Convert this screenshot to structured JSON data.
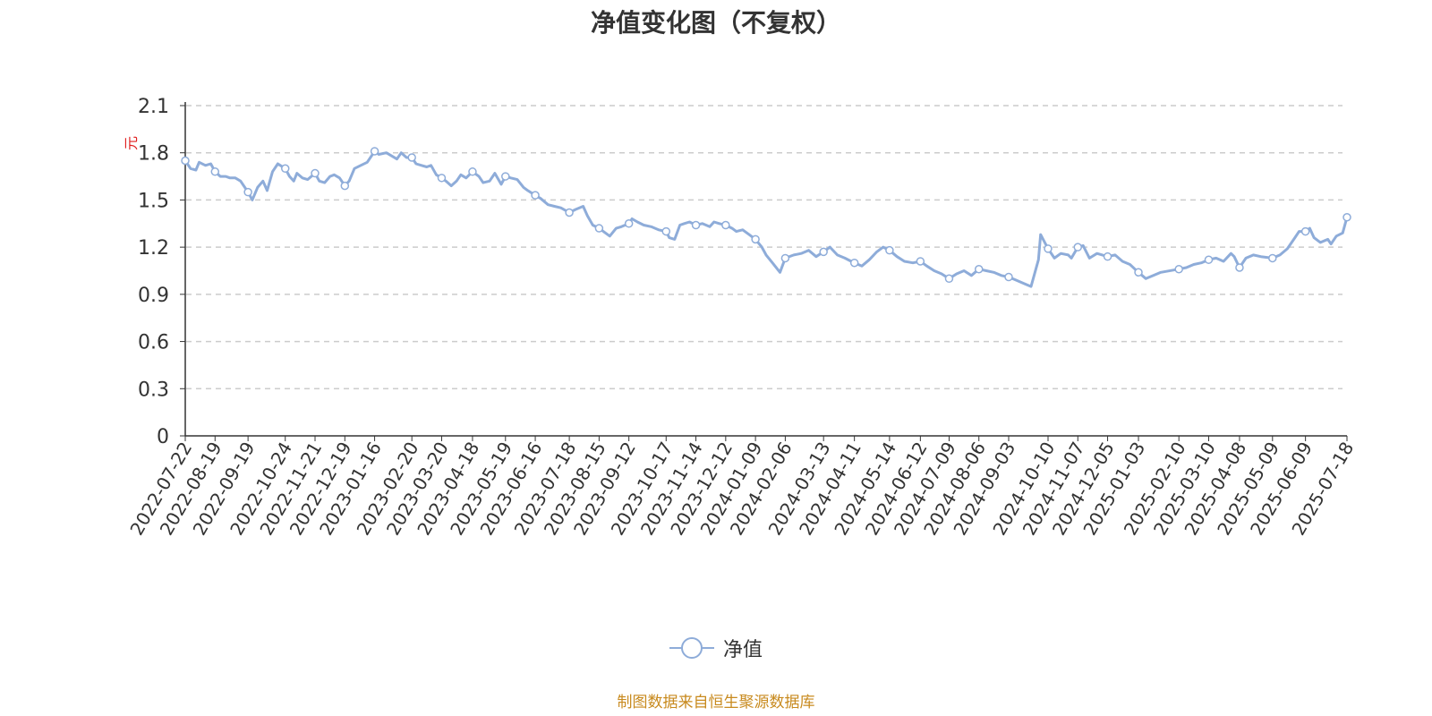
{
  "chart_data": {
    "type": "line",
    "title": "净值变化图（不复权）",
    "ylabel": "元",
    "ylim": [
      0,
      2.1
    ],
    "yticks": [
      "0",
      "0.3",
      "0.6",
      "0.9",
      "1.2",
      "1.5",
      "1.8",
      "2.1"
    ],
    "x_tick_labels": [
      "2022-07-22",
      "2022-08-19",
      "2022-09-19",
      "2022-10-24",
      "2022-11-21",
      "2022-12-19",
      "2023-01-16",
      "2023-02-20",
      "2023-03-20",
      "2023-04-18",
      "2023-05-19",
      "2023-06-16",
      "2023-07-18",
      "2023-08-15",
      "2023-09-12",
      "2023-10-17",
      "2023-11-14",
      "2023-12-12",
      "2024-01-09",
      "2024-02-06",
      "2024-03-13",
      "2024-04-11",
      "2024-05-14",
      "2024-06-12",
      "2024-07-09",
      "2024-08-06",
      "2024-09-03",
      "2024-10-10",
      "2024-11-07",
      "2024-12-05",
      "2025-01-03",
      "2025-02-10",
      "2025-03-10",
      "2025-04-08",
      "2025-05-09",
      "2025-06-09",
      "2025-07-18"
    ],
    "grid": true,
    "legend_position": "bottom-center",
    "series": [
      {
        "name": "净值",
        "color": "#8eacd9",
        "points": [
          [
            "2022-07-22",
            1.75
          ],
          [
            "2022-07-27",
            1.7
          ],
          [
            "2022-08-01",
            1.69
          ],
          [
            "2022-08-04",
            1.74
          ],
          [
            "2022-08-10",
            1.72
          ],
          [
            "2022-08-15",
            1.73
          ],
          [
            "2022-08-19",
            1.68
          ],
          [
            "2022-08-24",
            1.65
          ],
          [
            "2022-08-29",
            1.65
          ],
          [
            "2022-09-02",
            1.64
          ],
          [
            "2022-09-07",
            1.64
          ],
          [
            "2022-09-12",
            1.62
          ],
          [
            "2022-09-19",
            1.55
          ],
          [
            "2022-09-23",
            1.5
          ],
          [
            "2022-09-28",
            1.58
          ],
          [
            "2022-10-03",
            1.62
          ],
          [
            "2022-10-07",
            1.56
          ],
          [
            "2022-10-12",
            1.68
          ],
          [
            "2022-10-17",
            1.73
          ],
          [
            "2022-10-24",
            1.7
          ],
          [
            "2022-10-28",
            1.65
          ],
          [
            "2022-11-01",
            1.62
          ],
          [
            "2022-11-04",
            1.67
          ],
          [
            "2022-11-09",
            1.64
          ],
          [
            "2022-11-14",
            1.63
          ],
          [
            "2022-11-21",
            1.67
          ],
          [
            "2022-11-25",
            1.62
          ],
          [
            "2022-11-30",
            1.61
          ],
          [
            "2022-12-05",
            1.65
          ],
          [
            "2022-12-09",
            1.66
          ],
          [
            "2022-12-14",
            1.64
          ],
          [
            "2022-12-19",
            1.59
          ],
          [
            "2022-12-23",
            1.62
          ],
          [
            "2022-12-28",
            1.7
          ],
          [
            "2023-01-03",
            1.72
          ],
          [
            "2023-01-09",
            1.74
          ],
          [
            "2023-01-16",
            1.81
          ],
          [
            "2023-01-20",
            1.79
          ],
          [
            "2023-01-27",
            1.8
          ],
          [
            "2023-02-01",
            1.78
          ],
          [
            "2023-02-06",
            1.76
          ],
          [
            "2023-02-10",
            1.8
          ],
          [
            "2023-02-15",
            1.77
          ],
          [
            "2023-02-20",
            1.77
          ],
          [
            "2023-02-24",
            1.73
          ],
          [
            "2023-03-01",
            1.72
          ],
          [
            "2023-03-06",
            1.71
          ],
          [
            "2023-03-10",
            1.72
          ],
          [
            "2023-03-15",
            1.66
          ],
          [
            "2023-03-20",
            1.64
          ],
          [
            "2023-03-24",
            1.62
          ],
          [
            "2023-03-29",
            1.59
          ],
          [
            "2023-04-03",
            1.62
          ],
          [
            "2023-04-07",
            1.66
          ],
          [
            "2023-04-12",
            1.64
          ],
          [
            "2023-04-18",
            1.68
          ],
          [
            "2023-04-24",
            1.65
          ],
          [
            "2023-04-28",
            1.61
          ],
          [
            "2023-05-04",
            1.62
          ],
          [
            "2023-05-09",
            1.67
          ],
          [
            "2023-05-15",
            1.6
          ],
          [
            "2023-05-19",
            1.65
          ],
          [
            "2023-05-24",
            1.64
          ],
          [
            "2023-05-30",
            1.63
          ],
          [
            "2023-06-05",
            1.58
          ],
          [
            "2023-06-09",
            1.56
          ],
          [
            "2023-06-16",
            1.53
          ],
          [
            "2023-06-21",
            1.51
          ],
          [
            "2023-06-28",
            1.47
          ],
          [
            "2023-07-04",
            1.46
          ],
          [
            "2023-07-10",
            1.45
          ],
          [
            "2023-07-18",
            1.42
          ],
          [
            "2023-07-24",
            1.44
          ],
          [
            "2023-07-31",
            1.46
          ],
          [
            "2023-08-04",
            1.4
          ],
          [
            "2023-08-09",
            1.34
          ],
          [
            "2023-08-15",
            1.32
          ],
          [
            "2023-08-21",
            1.29
          ],
          [
            "2023-08-25",
            1.27
          ],
          [
            "2023-08-31",
            1.32
          ],
          [
            "2023-09-05",
            1.33
          ],
          [
            "2023-09-12",
            1.35
          ],
          [
            "2023-09-15",
            1.38
          ],
          [
            "2023-09-20",
            1.36
          ],
          [
            "2023-09-26",
            1.34
          ],
          [
            "2023-10-03",
            1.33
          ],
          [
            "2023-10-10",
            1.31
          ],
          [
            "2023-10-17",
            1.3
          ],
          [
            "2023-10-20",
            1.26
          ],
          [
            "2023-10-25",
            1.25
          ],
          [
            "2023-10-30",
            1.34
          ],
          [
            "2023-11-03",
            1.35
          ],
          [
            "2023-11-08",
            1.36
          ],
          [
            "2023-11-14",
            1.34
          ],
          [
            "2023-11-20",
            1.35
          ],
          [
            "2023-11-27",
            1.33
          ],
          [
            "2023-12-01",
            1.36
          ],
          [
            "2023-12-06",
            1.35
          ],
          [
            "2023-12-12",
            1.34
          ],
          [
            "2023-12-18",
            1.32
          ],
          [
            "2023-12-22",
            1.3
          ],
          [
            "2023-12-28",
            1.31
          ],
          [
            "2024-01-03",
            1.28
          ],
          [
            "2024-01-09",
            1.25
          ],
          [
            "2024-01-15",
            1.2
          ],
          [
            "2024-01-19",
            1.15
          ],
          [
            "2024-01-25",
            1.1
          ],
          [
            "2024-02-01",
            1.04
          ],
          [
            "2024-02-06",
            1.13
          ],
          [
            "2024-02-14",
            1.15
          ],
          [
            "2024-02-21",
            1.16
          ],
          [
            "2024-02-28",
            1.18
          ],
          [
            "2024-03-06",
            1.14
          ],
          [
            "2024-03-13",
            1.17
          ],
          [
            "2024-03-19",
            1.2
          ],
          [
            "2024-03-26",
            1.15
          ],
          [
            "2024-04-02",
            1.13
          ],
          [
            "2024-04-08",
            1.11
          ],
          [
            "2024-04-11",
            1.1
          ],
          [
            "2024-04-18",
            1.08
          ],
          [
            "2024-04-25",
            1.12
          ],
          [
            "2024-05-02",
            1.17
          ],
          [
            "2024-05-08",
            1.2
          ],
          [
            "2024-05-14",
            1.18
          ],
          [
            "2024-05-21",
            1.14
          ],
          [
            "2024-05-28",
            1.11
          ],
          [
            "2024-06-05",
            1.1
          ],
          [
            "2024-06-12",
            1.11
          ],
          [
            "2024-06-18",
            1.08
          ],
          [
            "2024-06-25",
            1.05
          ],
          [
            "2024-07-02",
            1.03
          ],
          [
            "2024-07-09",
            1.0
          ],
          [
            "2024-07-16",
            1.03
          ],
          [
            "2024-07-23",
            1.05
          ],
          [
            "2024-07-30",
            1.02
          ],
          [
            "2024-08-06",
            1.06
          ],
          [
            "2024-08-13",
            1.05
          ],
          [
            "2024-08-20",
            1.04
          ],
          [
            "2024-08-27",
            1.02
          ],
          [
            "2024-09-03",
            1.01
          ],
          [
            "2024-09-10",
            0.99
          ],
          [
            "2024-09-17",
            0.97
          ],
          [
            "2024-09-24",
            0.95
          ],
          [
            "2024-10-01",
            1.12
          ],
          [
            "2024-10-03",
            1.28
          ],
          [
            "2024-10-10",
            1.19
          ],
          [
            "2024-10-16",
            1.13
          ],
          [
            "2024-10-22",
            1.16
          ],
          [
            "2024-10-29",
            1.15
          ],
          [
            "2024-11-01",
            1.13
          ],
          [
            "2024-11-07",
            1.2
          ],
          [
            "2024-11-12",
            1.21
          ],
          [
            "2024-11-18",
            1.13
          ],
          [
            "2024-11-25",
            1.16
          ],
          [
            "2024-12-05",
            1.14
          ],
          [
            "2024-12-12",
            1.15
          ],
          [
            "2024-12-19",
            1.11
          ],
          [
            "2024-12-26",
            1.09
          ],
          [
            "2025-01-03",
            1.04
          ],
          [
            "2025-01-10",
            1.0
          ],
          [
            "2025-01-17",
            1.02
          ],
          [
            "2025-01-24",
            1.04
          ],
          [
            "2025-02-10",
            1.06
          ],
          [
            "2025-02-17",
            1.07
          ],
          [
            "2025-02-24",
            1.09
          ],
          [
            "2025-03-03",
            1.1
          ],
          [
            "2025-03-10",
            1.12
          ],
          [
            "2025-03-17",
            1.13
          ],
          [
            "2025-03-24",
            1.11
          ],
          [
            "2025-03-31",
            1.16
          ],
          [
            "2025-04-03",
            1.14
          ],
          [
            "2025-04-08",
            1.07
          ],
          [
            "2025-04-14",
            1.13
          ],
          [
            "2025-04-21",
            1.15
          ],
          [
            "2025-04-28",
            1.14
          ],
          [
            "2025-05-09",
            1.13
          ],
          [
            "2025-05-16",
            1.15
          ],
          [
            "2025-05-23",
            1.19
          ],
          [
            "2025-05-30",
            1.26
          ],
          [
            "2025-06-03",
            1.3
          ],
          [
            "2025-06-09",
            1.3
          ],
          [
            "2025-06-13",
            1.32
          ],
          [
            "2025-06-17",
            1.26
          ],
          [
            "2025-06-23",
            1.23
          ],
          [
            "2025-06-30",
            1.25
          ],
          [
            "2025-07-03",
            1.22
          ],
          [
            "2025-07-08",
            1.27
          ],
          [
            "2025-07-14",
            1.29
          ],
          [
            "2025-07-18",
            1.39
          ]
        ],
        "markers": [
          [
            "2022-07-22",
            1.75
          ],
          [
            "2022-08-19",
            1.68
          ],
          [
            "2022-09-19",
            1.55
          ],
          [
            "2022-10-24",
            1.7
          ],
          [
            "2022-11-21",
            1.67
          ],
          [
            "2022-12-19",
            1.59
          ],
          [
            "2023-01-16",
            1.81
          ],
          [
            "2023-02-20",
            1.77
          ],
          [
            "2023-03-20",
            1.64
          ],
          [
            "2023-04-18",
            1.68
          ],
          [
            "2023-05-19",
            1.65
          ],
          [
            "2023-06-16",
            1.53
          ],
          [
            "2023-07-18",
            1.42
          ],
          [
            "2023-08-15",
            1.32
          ],
          [
            "2023-09-12",
            1.35
          ],
          [
            "2023-10-17",
            1.3
          ],
          [
            "2023-11-14",
            1.34
          ],
          [
            "2023-12-12",
            1.34
          ],
          [
            "2024-01-09",
            1.25
          ],
          [
            "2024-02-06",
            1.13
          ],
          [
            "2024-03-13",
            1.17
          ],
          [
            "2024-04-11",
            1.1
          ],
          [
            "2024-05-14",
            1.18
          ],
          [
            "2024-06-12",
            1.11
          ],
          [
            "2024-07-09",
            1.0
          ],
          [
            "2024-08-06",
            1.06
          ],
          [
            "2024-09-03",
            1.01
          ],
          [
            "2024-10-10",
            1.19
          ],
          [
            "2024-11-07",
            1.2
          ],
          [
            "2024-12-05",
            1.14
          ],
          [
            "2025-01-03",
            1.04
          ],
          [
            "2025-02-10",
            1.06
          ],
          [
            "2025-03-10",
            1.12
          ],
          [
            "2025-04-08",
            1.07
          ],
          [
            "2025-05-09",
            1.13
          ],
          [
            "2025-06-09",
            1.3
          ],
          [
            "2025-07-18",
            1.39
          ]
        ]
      }
    ]
  },
  "legend": {
    "label": "净值",
    "icon": "circle-line-legend-icon"
  },
  "source_note": "制图数据来自恒生聚源数据库",
  "colors": {
    "line": "#8eacd9",
    "grid": "#cccccc",
    "axis": "#333333",
    "unit": "#e02020",
    "source": "#c88a1e",
    "title": "#333333"
  }
}
